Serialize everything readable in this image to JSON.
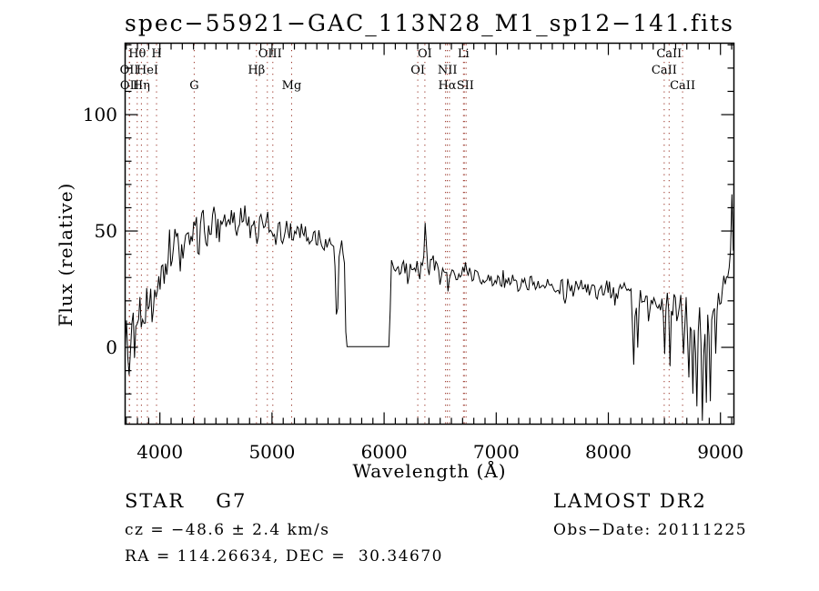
{
  "title": "spec−55921−GAC_113N28_M1_sp12−141.fits",
  "annotations": {
    "object_type": "STAR",
    "subclass": "G7",
    "survey": "LAMOST DR2",
    "cz": "cz = −48.6 ± 2.4 km/s",
    "obs_date": "Obs−Date: 20111225",
    "radec": "RA = 114.26634, DEC =  30.34670"
  },
  "colors": {
    "background": "#ffffff",
    "spectrum_line": "#000000",
    "line_marker_dotted": "#993327",
    "axis": "#000000",
    "text": "#000000"
  },
  "chart_data": {
    "type": "line",
    "title": "spec−55921−GAC_113N28_M1_sp12−141.fits",
    "xlabel": "Wavelength (Å)",
    "ylabel": "Flux (relative)",
    "xlim": [
      3690,
      9120
    ],
    "ylim": [
      -33,
      130.7
    ],
    "x_major_ticks": [
      4000,
      5000,
      6000,
      7000,
      8000,
      9000
    ],
    "x_minor_step": 100,
    "y_major_ticks": [
      0,
      50,
      100
    ],
    "y_minor_step": 10,
    "grid": false,
    "legend": null,
    "series": [
      {
        "name": "spectrum",
        "seed": 13,
        "sample_step": 12,
        "envelope": [
          [
            3690,
            0
          ],
          [
            3692,
            5
          ],
          [
            3696,
            13
          ],
          [
            3720,
            12
          ],
          [
            3760,
            15
          ],
          [
            3810,
            19
          ],
          [
            3860,
            24
          ],
          [
            3920,
            29
          ],
          [
            3980,
            34
          ],
          [
            4060,
            39
          ],
          [
            4160,
            45
          ],
          [
            4260,
            49
          ],
          [
            4360,
            52
          ],
          [
            4460,
            53
          ],
          [
            4560,
            53
          ],
          [
            4660,
            54
          ],
          [
            4760,
            55
          ],
          [
            4860,
            53
          ],
          [
            4960,
            52
          ],
          [
            5060,
            49
          ],
          [
            5160,
            50
          ],
          [
            5260,
            49
          ],
          [
            5360,
            48
          ],
          [
            5460,
            46
          ],
          [
            5530,
            45
          ],
          [
            5570,
            43
          ],
          [
            5640,
            42
          ],
          [
            5645,
            42
          ],
          [
            5650,
            13
          ],
          [
            5656,
            13
          ],
          [
            5660,
            0.3
          ],
          [
            6052,
            0.3
          ],
          [
            6055,
            24
          ],
          [
            6059,
            24
          ],
          [
            6063,
            37
          ],
          [
            6100,
            35
          ],
          [
            6200,
            33
          ],
          [
            6300,
            34
          ],
          [
            6360,
            36
          ],
          [
            6450,
            33
          ],
          [
            6550,
            32
          ],
          [
            6650,
            32
          ],
          [
            6800,
            31
          ],
          [
            6950,
            30
          ],
          [
            7100,
            29
          ],
          [
            7250,
            28
          ],
          [
            7400,
            27
          ],
          [
            7550,
            26
          ],
          [
            7700,
            26
          ],
          [
            7850,
            25
          ],
          [
            8000,
            24
          ],
          [
            8150,
            24
          ],
          [
            8300,
            22
          ],
          [
            8450,
            21
          ],
          [
            8600,
            19
          ],
          [
            8750,
            17
          ],
          [
            8870,
            18
          ],
          [
            8950,
            21
          ],
          [
            9010,
            26
          ],
          [
            9060,
            32
          ],
          [
            9085,
            36
          ],
          [
            9095,
            48
          ],
          [
            9102,
            65
          ],
          [
            9108,
            45
          ],
          [
            9115,
            40
          ],
          [
            9120,
            38
          ]
        ],
        "noise_amplitude": [
          [
            3690,
            10
          ],
          [
            3900,
            10
          ],
          [
            4000,
            9
          ],
          [
            4150,
            7
          ],
          [
            4300,
            6
          ],
          [
            4500,
            5
          ],
          [
            4700,
            4.5
          ],
          [
            5000,
            4
          ],
          [
            5300,
            3.6
          ],
          [
            5650,
            3
          ],
          [
            6060,
            3.6
          ],
          [
            6200,
            4
          ],
          [
            6400,
            3.6
          ],
          [
            6700,
            3
          ],
          [
            7000,
            2.8
          ],
          [
            7300,
            2.6
          ],
          [
            7600,
            2.8
          ],
          [
            7900,
            3
          ],
          [
            8100,
            3.2
          ],
          [
            8300,
            3.6
          ],
          [
            8500,
            4.5
          ],
          [
            8650,
            6
          ],
          [
            8800,
            7
          ],
          [
            8950,
            5
          ],
          [
            9050,
            4
          ],
          [
            9120,
            4
          ]
        ],
        "spikes": [
          [
            3725,
            -9
          ],
          [
            3750,
            -11
          ],
          [
            3775,
            -12
          ],
          [
            3802,
            -11
          ],
          [
            3840,
            -13
          ],
          [
            3892,
            -12
          ],
          [
            3935,
            -12
          ],
          [
            3972,
            -10
          ],
          [
            4028,
            -12
          ],
          [
            4104,
            -12
          ],
          [
            4185,
            -8
          ],
          [
            4230,
            -7
          ],
          [
            4344,
            -9
          ],
          [
            4410,
            -6
          ],
          [
            4530,
            -5
          ],
          [
            4680,
            -5
          ],
          [
            4820,
            -5
          ],
          [
            4864,
            -7
          ],
          [
            4965,
            9
          ],
          [
            5050,
            -5
          ],
          [
            5175,
            -6
          ],
          [
            5270,
            4
          ],
          [
            5330,
            -5
          ],
          [
            5440,
            -4
          ],
          [
            5572,
            -27
          ],
          [
            5590,
            -18
          ],
          [
            6362,
            15
          ],
          [
            6440,
            6
          ],
          [
            6500,
            -4
          ],
          [
            6566,
            -6
          ],
          [
            6720,
            4
          ],
          [
            6875,
            -5
          ],
          [
            7000,
            -3
          ],
          [
            7190,
            -5
          ],
          [
            7280,
            -4
          ],
          [
            7610,
            -5
          ],
          [
            7690,
            -4
          ],
          [
            7900,
            -4
          ],
          [
            8060,
            -5
          ],
          [
            8230,
            -29
          ],
          [
            8257,
            -25
          ],
          [
            8355,
            -8
          ],
          [
            8445,
            -9
          ],
          [
            8505,
            -20
          ],
          [
            8548,
            -24
          ],
          [
            8610,
            -12
          ],
          [
            8668,
            -26
          ],
          [
            8715,
            -30
          ],
          [
            8755,
            -35
          ],
          [
            8795,
            -45
          ],
          [
            8832,
            -47
          ],
          [
            8872,
            -44
          ],
          [
            8912,
            -38
          ],
          [
            8952,
            -26
          ],
          [
            9000,
            -10
          ]
        ],
        "gap": {
          "start": 5660,
          "end": 6052,
          "level": 0.3
        },
        "quiet_zones": [
          [
            3690,
            3700
          ],
          [
            5645,
            6058
          ]
        ]
      }
    ],
    "spectral_lines": {
      "dotted_wavelengths": [
        3727,
        3730,
        3798,
        3835,
        3889,
        3970,
        4306,
        4861,
        4959,
        5007,
        5175,
        6300,
        6364,
        6548,
        6563,
        6583,
        6708,
        6716,
        6731,
        8498,
        8542,
        8662
      ],
      "labels": [
        {
          "text": "Hθ",
          "wavelength": 3798,
          "row": 1
        },
        {
          "text": "H",
          "wavelength": 3970,
          "row": 1
        },
        {
          "text": "OIII",
          "wavelength": 4983,
          "row": 1
        },
        {
          "text": "OI",
          "wavelength": 6364,
          "row": 1
        },
        {
          "text": "Li",
          "wavelength": 6708,
          "row": 1
        },
        {
          "text": "CaII",
          "wavelength": 8542,
          "row": 1
        },
        {
          "text": "OII",
          "wavelength": 3727,
          "row": 2
        },
        {
          "text": "HeI",
          "wavelength": 3889,
          "row": 2
        },
        {
          "text": "Hβ",
          "wavelength": 4861,
          "row": 2
        },
        {
          "text": "OI",
          "wavelength": 6300,
          "row": 2
        },
        {
          "text": "NII",
          "wavelength": 6565,
          "row": 2
        },
        {
          "text": "CaII",
          "wavelength": 8498,
          "row": 2
        },
        {
          "text": "OII",
          "wavelength": 3730,
          "row": 3
        },
        {
          "text": "Hη",
          "wavelength": 3835,
          "row": 3
        },
        {
          "text": "G",
          "wavelength": 4306,
          "row": 3
        },
        {
          "text": "Mg",
          "wavelength": 5175,
          "row": 3
        },
        {
          "text": "Hα",
          "wavelength": 6563,
          "row": 3
        },
        {
          "text": "SII",
          "wavelength": 6724,
          "row": 3
        },
        {
          "text": "CaII",
          "wavelength": 8662,
          "row": 3
        }
      ]
    }
  }
}
